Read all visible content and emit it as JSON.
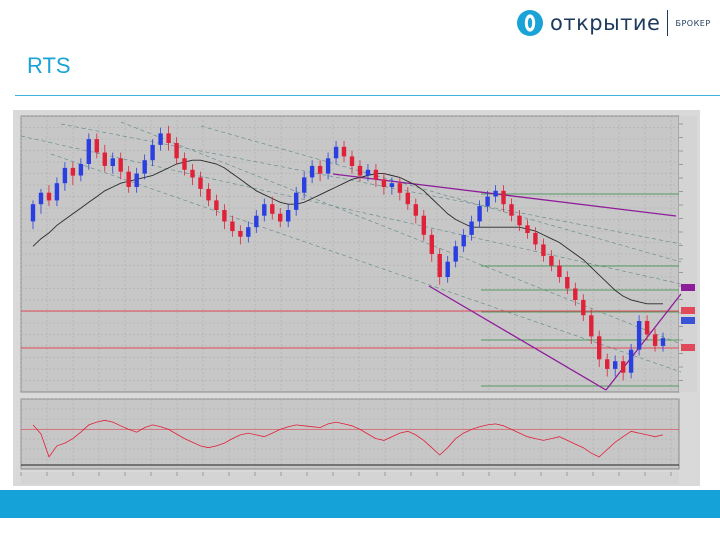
{
  "brand": {
    "name": "открытие",
    "sub": "БРОКЕР",
    "color": "#1aa3d6",
    "ink": "#1d3a5c"
  },
  "slide": {
    "title": "RTS"
  },
  "colors": {
    "up": "#2b3fe0",
    "down": "#e0213a",
    "ma": "#2a2a2a",
    "fib": "#2e8b3e",
    "level": "#e04a5a",
    "trend": "#8e1d9a",
    "channel": "#6b8f8f",
    "bg": "#c7c7c7",
    "grid": "#a8a8a8",
    "accent": "#15a2d8"
  },
  "chart_data": [
    {
      "type": "candlestick",
      "grid": true,
      "series": [
        {
          "name": "",
          "values": [
            [
              47,
              56,
              43,
              58
            ],
            [
              56,
              62,
              51,
              64
            ],
            [
              62,
              58,
              55,
              66
            ],
            [
              58,
              67,
              55,
              70
            ],
            [
              67,
              75,
              63,
              78
            ],
            [
              75,
              71,
              66,
              78
            ],
            [
              71,
              77,
              68,
              80
            ],
            [
              77,
              90,
              74,
              93
            ],
            [
              90,
              83,
              80,
              93
            ],
            [
              83,
              76,
              73,
              87
            ],
            [
              76,
              80,
              72,
              83
            ],
            [
              80,
              73,
              69,
              83
            ],
            [
              73,
              65,
              62,
              76
            ],
            [
              65,
              72,
              62,
              75
            ],
            [
              72,
              79,
              69,
              82
            ],
            [
              79,
              87,
              76,
              90
            ],
            [
              87,
              93,
              84,
              96
            ],
            [
              93,
              88,
              84,
              97
            ],
            [
              88,
              80,
              77,
              91
            ],
            [
              80,
              74,
              71,
              83
            ],
            [
              74,
              70,
              66,
              77
            ],
            [
              70,
              64,
              60,
              73
            ],
            [
              64,
              58,
              55,
              67
            ],
            [
              58,
              53,
              50,
              61
            ],
            [
              53,
              47,
              43,
              56
            ],
            [
              47,
              42,
              39,
              50
            ],
            [
              42,
              39,
              35,
              45
            ],
            [
              39,
              44,
              36,
              47
            ],
            [
              44,
              50,
              41,
              53
            ],
            [
              50,
              56,
              47,
              59
            ],
            [
              56,
              51,
              48,
              60
            ],
            [
              51,
              47,
              44,
              54
            ],
            [
              47,
              53,
              44,
              56
            ],
            [
              53,
              62,
              50,
              65
            ],
            [
              62,
              70,
              59,
              73
            ],
            [
              70,
              76,
              67,
              79
            ],
            [
              76,
              72,
              68,
              79
            ],
            [
              72,
              80,
              69,
              83
            ],
            [
              80,
              86,
              77,
              89
            ],
            [
              86,
              81,
              78,
              89
            ],
            [
              81,
              76,
              72,
              84
            ],
            [
              76,
              71,
              68,
              79
            ],
            [
              71,
              74,
              68,
              77
            ],
            [
              74,
              69,
              65,
              77
            ],
            [
              69,
              65,
              61,
              72
            ],
            [
              65,
              67,
              61,
              70
            ],
            [
              67,
              62,
              58,
              70
            ],
            [
              62,
              56,
              53,
              65
            ],
            [
              56,
              50,
              46,
              59
            ],
            [
              50,
              40,
              37,
              53
            ],
            [
              40,
              30,
              26,
              43
            ],
            [
              30,
              18,
              14,
              33
            ],
            [
              18,
              26,
              15,
              29
            ],
            [
              26,
              34,
              23,
              37
            ],
            [
              34,
              40,
              31,
              43
            ],
            [
              40,
              47,
              37,
              50
            ],
            [
              47,
              55,
              44,
              58
            ],
            [
              55,
              60,
              52,
              63
            ],
            [
              60,
              63,
              57,
              66
            ],
            [
              63,
              56,
              52,
              66
            ],
            [
              56,
              50,
              47,
              59
            ],
            [
              50,
              45,
              42,
              53
            ],
            [
              45,
              41,
              38,
              48
            ],
            [
              41,
              35,
              32,
              44
            ],
            [
              35,
              29,
              26,
              38
            ],
            [
              29,
              24,
              21,
              32
            ],
            [
              24,
              18,
              15,
              27
            ],
            [
              18,
              12,
              9,
              21
            ],
            [
              12,
              6,
              3,
              15
            ],
            [
              6,
              -2,
              -5,
              9
            ],
            [
              -2,
              -13,
              -17,
              1
            ],
            [
              -13,
              -25,
              -29,
              -10
            ],
            [
              -25,
              -30,
              -34,
              -22
            ],
            [
              -30,
              -26,
              -34,
              -23
            ],
            [
              -26,
              -32,
              -36,
              -23
            ],
            [
              -32,
              -20,
              -35,
              -17
            ],
            [
              -20,
              -5,
              -23,
              -2
            ],
            [
              -5,
              -12,
              -15,
              -2
            ],
            [
              -12,
              -18,
              -21,
              -9
            ],
            [
              -18,
              -14,
              -21,
              -11
            ]
          ]
        },
        {
          "name": "",
          "values": [
            34,
            38,
            41,
            45,
            48,
            51,
            54,
            57,
            60,
            63,
            65,
            67,
            68,
            69,
            70,
            71,
            73,
            75,
            77,
            78,
            79,
            79,
            78,
            77,
            75,
            72,
            69,
            66,
            63,
            61,
            59,
            57,
            56,
            56,
            57,
            59,
            61,
            63,
            65,
            67,
            69,
            70,
            71,
            72,
            72,
            71,
            70,
            68,
            66,
            63,
            59,
            55,
            51,
            48,
            46,
            44,
            44,
            44,
            44,
            44,
            44,
            44,
            43,
            42,
            40,
            38,
            36,
            33,
            30,
            27,
            23,
            19,
            15,
            11,
            8,
            6,
            5,
            4,
            4,
            4
          ]
        },
        {
          "name": "",
          "values": [
            5,
            -5,
            -30,
            -18,
            -15,
            -10,
            -3,
            5,
            8,
            10,
            8,
            4,
            0,
            -3,
            2,
            5,
            3,
            0,
            -5,
            -10,
            -14,
            -18,
            -20,
            -18,
            -15,
            -10,
            -6,
            -4,
            -6,
            -8,
            -4,
            0,
            3,
            5,
            4,
            3,
            2,
            6,
            8,
            6,
            4,
            0,
            -5,
            -10,
            -12,
            -8,
            -4,
            -2,
            -6,
            -12,
            -20,
            -28,
            -20,
            -10,
            -4,
            0,
            3,
            5,
            6,
            4,
            0,
            -4,
            -8,
            -10,
            -12,
            -10,
            -8,
            -12,
            -16,
            -20,
            -26,
            -30,
            -22,
            -14,
            -8,
            -2,
            -4,
            -6,
            -8,
            -6
          ]
        }
      ]
    }
  ]
}
